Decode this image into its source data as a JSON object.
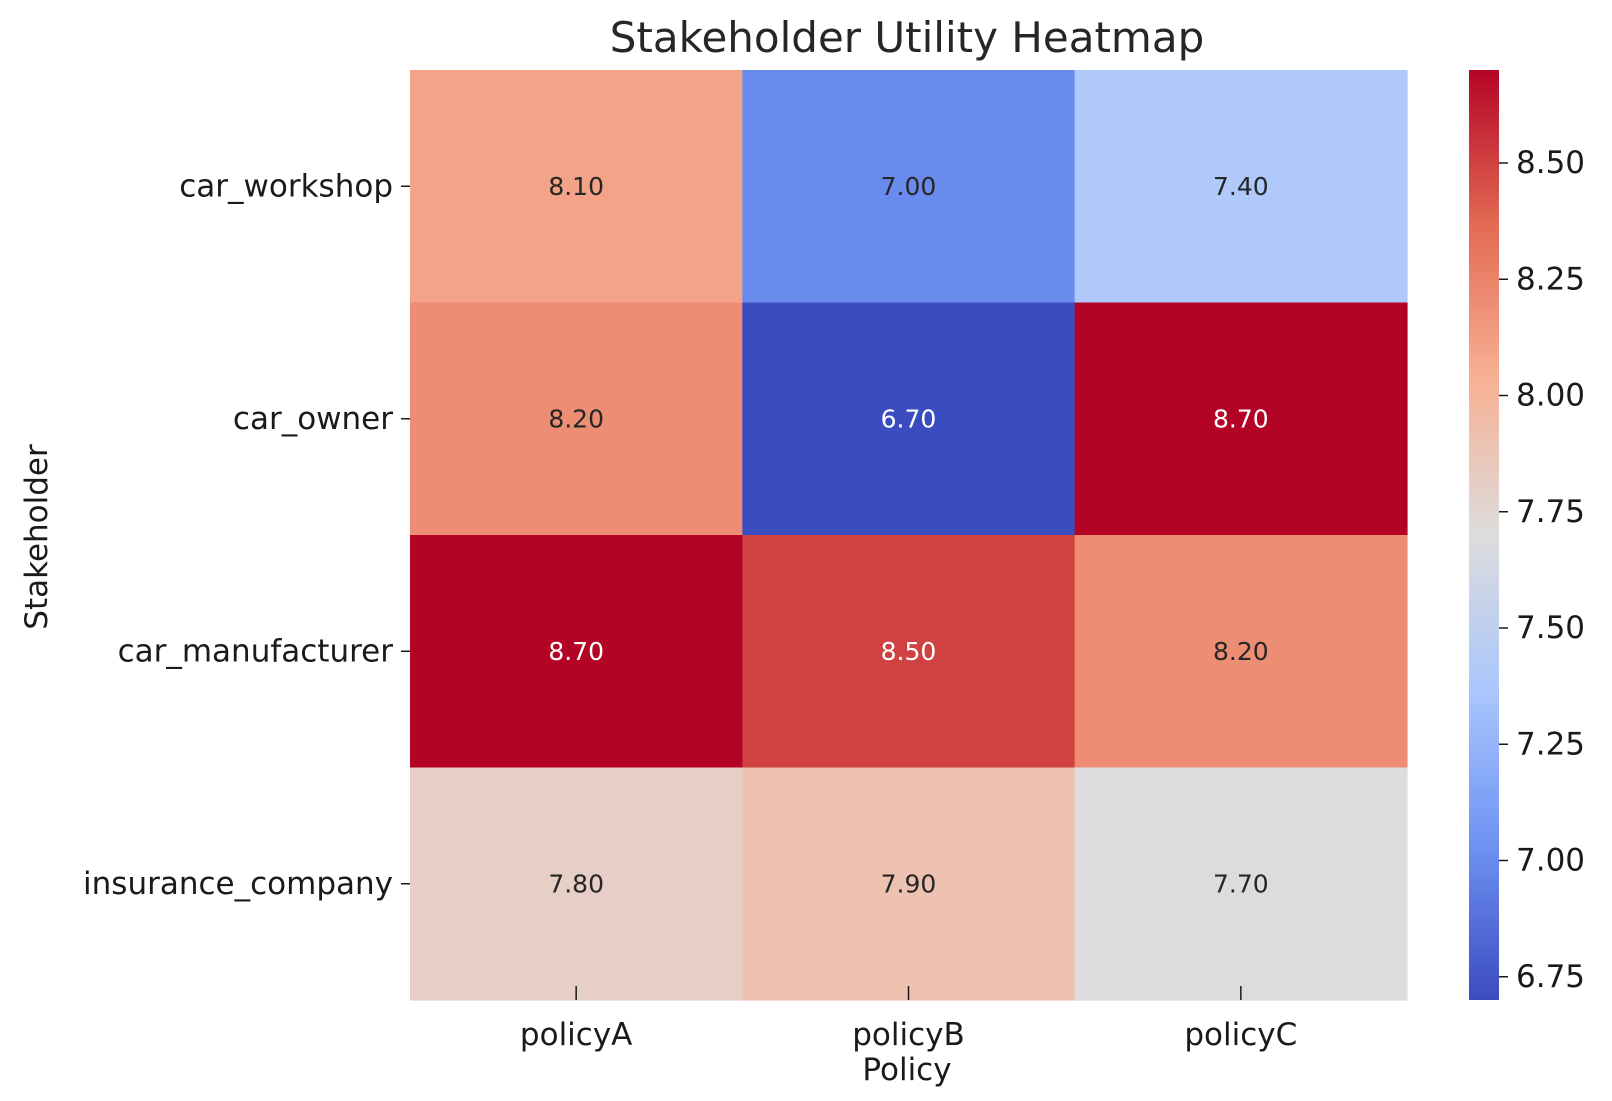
{
  "chart_data": {
    "type": "heatmap",
    "title": "Stakeholder Utility Heatmap",
    "xlabel": "Policy",
    "ylabel": "Stakeholder",
    "x_categories": [
      "policyA",
      "policyB",
      "policyC"
    ],
    "y_categories": [
      "car_workshop",
      "car_owner",
      "car_manufacturer",
      "insurance_company"
    ],
    "values": [
      [
        8.1,
        7.0,
        7.4
      ],
      [
        8.2,
        6.7,
        8.7
      ],
      [
        8.7,
        8.5,
        8.2
      ],
      [
        7.8,
        7.9,
        7.7
      ]
    ],
    "value_labels": [
      [
        "8.10",
        "7.00",
        "7.40"
      ],
      [
        "8.20",
        "6.70",
        "8.70"
      ],
      [
        "8.70",
        "8.50",
        "8.20"
      ],
      [
        "7.80",
        "7.90",
        "7.70"
      ]
    ],
    "colormap": "coolwarm",
    "vmin": 6.7,
    "vmax": 8.7,
    "colorbar_ticks": [
      6.75,
      7.0,
      7.25,
      7.5,
      7.75,
      8.0,
      8.25,
      8.5
    ],
    "colorbar_tick_labels": [
      "6.75",
      "7.00",
      "7.25",
      "7.50",
      "7.75",
      "8.00",
      "8.25",
      "8.50"
    ],
    "colormap_stops": [
      "#3b4cc0",
      "#6f92f3",
      "#aac7fd",
      "#dddcdc",
      "#f7b194",
      "#e36a53",
      "#b40426"
    ],
    "dark_text_color": "#262626",
    "light_text_color": "#ffffff",
    "tick_color": "#1a1a1a"
  }
}
